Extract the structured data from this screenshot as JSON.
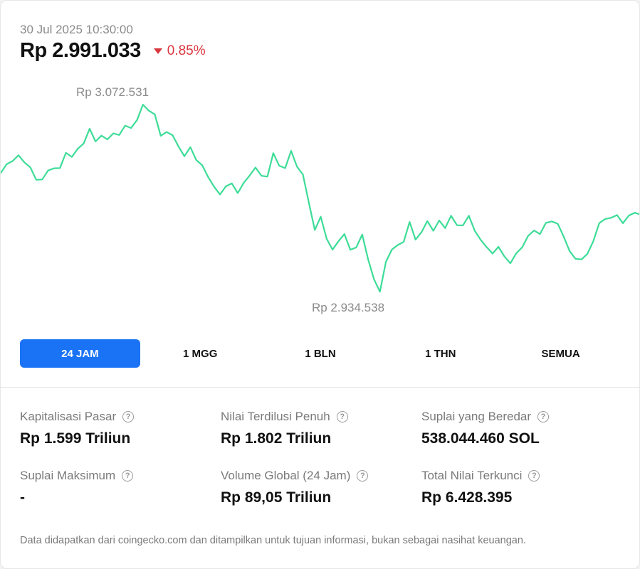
{
  "header": {
    "timestamp": "30 Jul 2025 10:30:00",
    "price": "Rp 2.991.033",
    "change": "0.85%",
    "change_direction_icon": "triangle-down-icon",
    "change_color": "#d9363e"
  },
  "chart_data": {
    "type": "line",
    "line_color": "#3ddc97",
    "high_label": "Rp 3.072.531",
    "low_label": "Rp 2.934.538",
    "grid": false,
    "ylim": [
      2934538,
      3072531
    ],
    "values": [
      3022000,
      3028500,
      3030800,
      3035100,
      3029900,
      3026200,
      3017000,
      3017300,
      3023900,
      3025500,
      3025700,
      3036900,
      3033900,
      3039900,
      3043800,
      3054700,
      3045300,
      3049600,
      3046800,
      3051300,
      3050100,
      3057000,
      3055200,
      3061100,
      3072500,
      3068000,
      3065300,
      3049500,
      3052300,
      3049900,
      3041700,
      3034400,
      3041100,
      3031600,
      3027800,
      3019100,
      3012000,
      3006200,
      3012200,
      3014400,
      3007200,
      3014700,
      3020100,
      3026100,
      3020000,
      3019400,
      3036700,
      3027400,
      3025600,
      3038400,
      3026700,
      3020900,
      3000000,
      2980000,
      2989800,
      2973600,
      2965500,
      2971700,
      2977000,
      2965400,
      2967100,
      2976600,
      2958300,
      2943600,
      2934500,
      2956500,
      2965500,
      2968900,
      2971200,
      2985900,
      2972900,
      2978300,
      2986600,
      2979400,
      2987000,
      2981400,
      2990500,
      2983500,
      2983400,
      2990500,
      2979400,
      2972700,
      2967400,
      2962600,
      2967600,
      2960500,
      2955400,
      2962800,
      2967200,
      2975600,
      2979600,
      2977000,
      2985200,
      2986300,
      2984600,
      2975100,
      2964500,
      2958700,
      2958300,
      2962400,
      2971700,
      2985000,
      2988100,
      2989000,
      2991000,
      2985000,
      2990700,
      2992700,
      2991300
    ]
  },
  "tabs": [
    {
      "label": "24 JAM",
      "active": true
    },
    {
      "label": "1 MGG",
      "active": false
    },
    {
      "label": "1 BLN",
      "active": false
    },
    {
      "label": "1 THN",
      "active": false
    },
    {
      "label": "SEMUA",
      "active": false
    }
  ],
  "stats": [
    {
      "label": "Kapitalisasi Pasar",
      "value": "Rp 1.599 Triliun"
    },
    {
      "label": "Nilai Terdilusi Penuh",
      "value": "Rp 1.802 Triliun"
    },
    {
      "label": "Suplai yang Beredar",
      "value": "538.044.460 SOL"
    },
    {
      "label": "Suplai Maksimum",
      "value": "-"
    },
    {
      "label": "Volume Global (24 Jam)",
      "value": "Rp 89,05 Triliun"
    },
    {
      "label": "Total Nilai Terkunci",
      "value": "Rp 6.428.395"
    }
  ],
  "help_icon_glyph": "?",
  "footer": "Data didapatkan dari coingecko.com dan ditampilkan untuk tujuan informasi, bukan sebagai nasihat keuangan."
}
